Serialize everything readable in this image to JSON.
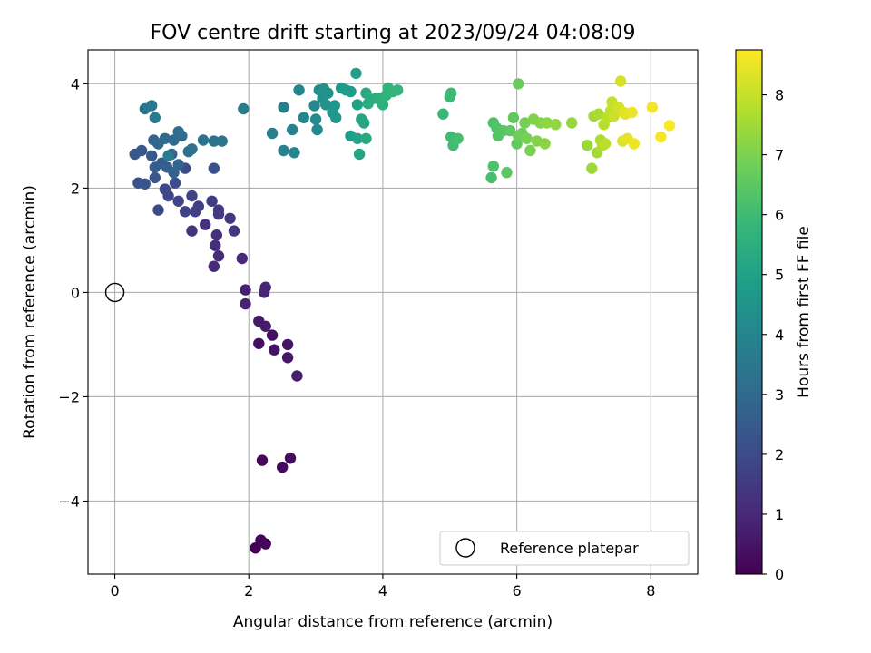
{
  "chart_data": {
    "type": "scatter",
    "title": "FOV centre drift starting at 2023/09/24 04:08:09",
    "xlabel": "Angular distance from reference (arcmin)",
    "ylabel": "Rotation from reference (arcmin)",
    "xlim": [
      -0.4,
      8.7
    ],
    "ylim": [
      -5.4,
      4.65
    ],
    "xticks": [
      0,
      2,
      4,
      6,
      8
    ],
    "xtick_labels": [
      "0",
      "2",
      "4",
      "6",
      "8"
    ],
    "yticks": [
      -4,
      -2,
      0,
      2,
      4
    ],
    "ytick_labels": [
      "−4",
      "−2",
      "0",
      "2",
      "4"
    ],
    "grid": true,
    "legend": {
      "placement": "lower-right",
      "entries": [
        "Reference platepar"
      ]
    },
    "colorbar": {
      "label": "Hours from first FF file",
      "colormap": "viridis",
      "range": [
        0,
        8.75
      ],
      "ticks": [
        0,
        1,
        2,
        3,
        4,
        5,
        6,
        7,
        8
      ],
      "tick_labels": [
        "0",
        "1",
        "2",
        "3",
        "4",
        "5",
        "6",
        "7",
        "8"
      ],
      "stops": [
        "#440154",
        "#482878",
        "#3e4989",
        "#31688e",
        "#26828e",
        "#1f9e89",
        "#35b779",
        "#6ece58",
        "#b5de2b",
        "#fde725"
      ]
    },
    "reference_point": {
      "name": "Reference platepar",
      "x": 0,
      "y": 0
    },
    "series": [
      {
        "points": [
          [
            2.1,
            -4.9
          ],
          [
            2.18,
            -4.75
          ],
          [
            2.25,
            -4.82
          ],
          [
            2.2,
            -3.22
          ],
          [
            2.5,
            -3.35
          ],
          [
            2.62,
            -3.18
          ],
          [
            2.15,
            -0.98
          ],
          [
            2.35,
            -0.82
          ],
          [
            2.38,
            -1.1
          ],
          [
            2.58,
            -1.0
          ],
          [
            2.58,
            -1.25
          ],
          [
            2.15,
            -0.55
          ],
          [
            2.25,
            -0.65
          ],
          [
            2.72,
            -1.6
          ],
          [
            1.95,
            0.05
          ],
          [
            1.95,
            -0.22
          ],
          [
            2.23,
            0.0
          ],
          [
            2.25,
            0.1
          ],
          [
            1.9,
            0.65
          ],
          [
            1.48,
            0.5
          ],
          [
            1.55,
            0.7
          ],
          [
            1.5,
            0.9
          ],
          [
            1.52,
            1.1
          ],
          [
            1.35,
            1.3
          ],
          [
            1.15,
            1.18
          ],
          [
            1.78,
            1.18
          ],
          [
            1.72,
            1.42
          ],
          [
            1.55,
            1.58
          ],
          [
            1.55,
            1.5
          ],
          [
            1.45,
            1.75
          ],
          [
            1.25,
            1.65
          ],
          [
            1.2,
            1.55
          ],
          [
            1.05,
            1.55
          ],
          [
            1.15,
            1.85
          ],
          [
            0.95,
            1.75
          ],
          [
            0.8,
            1.85
          ],
          [
            0.75,
            1.98
          ],
          [
            0.65,
            1.58
          ],
          [
            0.9,
            2.1
          ],
          [
            1.05,
            2.38
          ],
          [
            1.48,
            2.38
          ],
          [
            0.35,
            2.1
          ],
          [
            0.45,
            2.08
          ],
          [
            0.6,
            2.2
          ],
          [
            0.3,
            2.65
          ],
          [
            0.4,
            2.72
          ],
          [
            0.55,
            2.62
          ],
          [
            0.6,
            2.4
          ],
          [
            0.7,
            2.48
          ],
          [
            0.78,
            2.4
          ],
          [
            0.85,
            2.65
          ],
          [
            0.88,
            2.3
          ],
          [
            0.95,
            2.45
          ],
          [
            0.58,
            2.92
          ],
          [
            0.65,
            2.85
          ],
          [
            0.75,
            2.95
          ],
          [
            0.88,
            2.92
          ],
          [
            0.95,
            3.08
          ],
          [
            1.0,
            3.0
          ],
          [
            1.1,
            2.7
          ],
          [
            1.15,
            2.75
          ],
          [
            1.32,
            2.92
          ],
          [
            1.48,
            2.9
          ],
          [
            1.6,
            2.9
          ],
          [
            0.45,
            3.52
          ],
          [
            0.55,
            3.58
          ],
          [
            0.6,
            3.35
          ],
          [
            0.8,
            2.62
          ],
          [
            1.92,
            3.52
          ],
          [
            2.35,
            3.05
          ],
          [
            2.52,
            3.55
          ],
          [
            2.52,
            2.72
          ],
          [
            2.65,
            3.12
          ],
          [
            2.68,
            2.68
          ],
          [
            2.75,
            3.88
          ],
          [
            2.82,
            3.35
          ],
          [
            2.98,
            3.58
          ],
          [
            3.0,
            3.32
          ],
          [
            3.02,
            3.12
          ],
          [
            3.05,
            3.88
          ],
          [
            3.1,
            3.72
          ],
          [
            3.12,
            3.9
          ],
          [
            3.15,
            3.6
          ],
          [
            3.18,
            3.82
          ],
          [
            3.25,
            3.45
          ],
          [
            3.28,
            3.58
          ],
          [
            3.3,
            3.35
          ],
          [
            3.38,
            3.92
          ],
          [
            3.45,
            3.88
          ],
          [
            3.52,
            3.85
          ],
          [
            3.52,
            3.0
          ],
          [
            3.6,
            4.2
          ],
          [
            3.62,
            3.6
          ],
          [
            3.62,
            2.95
          ],
          [
            3.65,
            2.65
          ],
          [
            3.68,
            3.32
          ],
          [
            3.72,
            3.25
          ],
          [
            3.75,
            3.82
          ],
          [
            3.75,
            2.95
          ],
          [
            3.78,
            3.62
          ],
          [
            3.82,
            3.7
          ],
          [
            3.9,
            3.72
          ],
          [
            3.95,
            3.72
          ],
          [
            4.0,
            3.6
          ],
          [
            4.05,
            3.78
          ],
          [
            4.08,
            3.92
          ],
          [
            4.15,
            3.85
          ],
          [
            4.22,
            3.88
          ],
          [
            4.9,
            3.42
          ],
          [
            5.0,
            3.75
          ],
          [
            5.02,
            3.82
          ],
          [
            5.02,
            2.98
          ],
          [
            5.05,
            2.82
          ],
          [
            5.12,
            2.95
          ],
          [
            5.62,
            2.2
          ],
          [
            5.65,
            2.42
          ],
          [
            5.65,
            3.25
          ],
          [
            5.7,
            3.15
          ],
          [
            5.72,
            3.0
          ],
          [
            5.8,
            3.1
          ],
          [
            5.85,
            2.3
          ],
          [
            5.9,
            3.1
          ],
          [
            5.95,
            3.35
          ],
          [
            6.0,
            2.85
          ],
          [
            6.02,
            4.0
          ],
          [
            6.02,
            3.0
          ],
          [
            6.08,
            3.05
          ],
          [
            6.12,
            3.25
          ],
          [
            6.15,
            2.95
          ],
          [
            6.2,
            2.72
          ],
          [
            6.25,
            3.32
          ],
          [
            6.3,
            2.9
          ],
          [
            6.35,
            3.25
          ],
          [
            6.42,
            2.85
          ],
          [
            6.45,
            3.25
          ],
          [
            6.58,
            3.22
          ],
          [
            6.82,
            3.25
          ],
          [
            7.05,
            2.82
          ],
          [
            7.12,
            2.38
          ],
          [
            7.15,
            3.38
          ],
          [
            7.2,
            2.68
          ],
          [
            7.22,
            3.42
          ],
          [
            7.25,
            2.92
          ],
          [
            7.28,
            2.82
          ],
          [
            7.3,
            3.22
          ],
          [
            7.32,
            2.85
          ],
          [
            7.35,
            3.35
          ],
          [
            7.4,
            3.48
          ],
          [
            7.42,
            3.65
          ],
          [
            7.45,
            3.38
          ],
          [
            7.5,
            3.52
          ],
          [
            7.52,
            3.55
          ],
          [
            7.55,
            4.05
          ],
          [
            7.58,
            2.9
          ],
          [
            7.6,
            3.45
          ],
          [
            7.62,
            3.42
          ],
          [
            7.65,
            2.95
          ],
          [
            7.72,
            3.45
          ],
          [
            7.75,
            2.85
          ],
          [
            8.02,
            3.55
          ],
          [
            8.15,
            2.98
          ],
          [
            8.28,
            3.2
          ]
        ]
      }
    ]
  }
}
